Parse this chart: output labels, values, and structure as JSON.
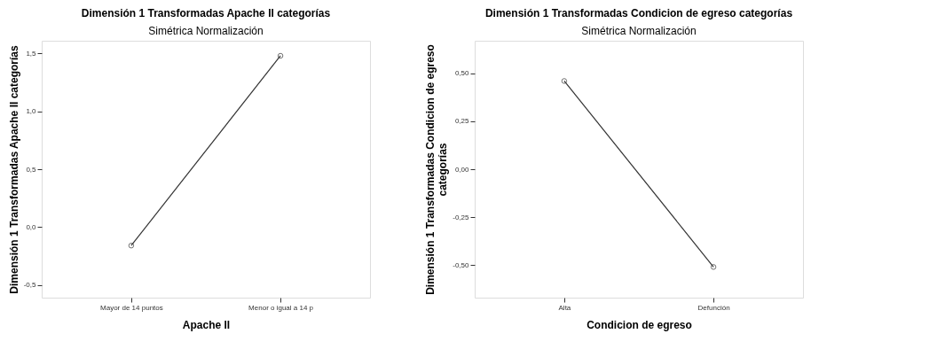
{
  "chart_data": [
    {
      "type": "line",
      "title": "Dimensión 1 Transformadas Apache II categorías",
      "subtitle": "Simétrica Normalización",
      "xlabel": "Apache II",
      "ylabel": "Dimensión 1 Transformadas Apache II categorías",
      "categories": [
        "Mayor de 14 puntos",
        "Menor o igual a 14 p"
      ],
      "series": [
        {
          "color": "#333333",
          "values": [
            -0.16,
            1.48
          ]
        }
      ],
      "ylim": [
        -0.61,
        1.61
      ],
      "yticks": [
        {
          "value": -0.5,
          "label": "-0,5"
        },
        {
          "value": 0,
          "label": "0,0"
        },
        {
          "value": 0.5,
          "label": "0,5"
        },
        {
          "value": 1.0,
          "label": "1,0"
        },
        {
          "value": 1.5,
          "label": "1,5"
        }
      ],
      "marker": "circle",
      "line_style": "solid",
      "grid": false
    },
    {
      "type": "line",
      "title": "Dimensión 1 Transformadas Condicion de egreso categorías",
      "subtitle": "Simétrica Normalización",
      "xlabel": "Condicion de egreso",
      "ylabel": "Dimensión 1 Transformadas Condicion de egreso categorías",
      "categories": [
        "Alta",
        "Defunción"
      ],
      "series": [
        {
          "color": "#333333",
          "values": [
            0.46,
            -0.51
          ]
        }
      ],
      "ylim": [
        -0.67,
        0.67
      ],
      "yticks": [
        {
          "value": -0.5,
          "label": "-0,50"
        },
        {
          "value": -0.25,
          "label": "-0,25"
        },
        {
          "value": 0,
          "label": "0,00"
        },
        {
          "value": 0.25,
          "label": "0,25"
        },
        {
          "value": 0.5,
          "label": "0,50"
        }
      ],
      "marker": "circle",
      "line_style": "solid",
      "grid": false
    }
  ]
}
